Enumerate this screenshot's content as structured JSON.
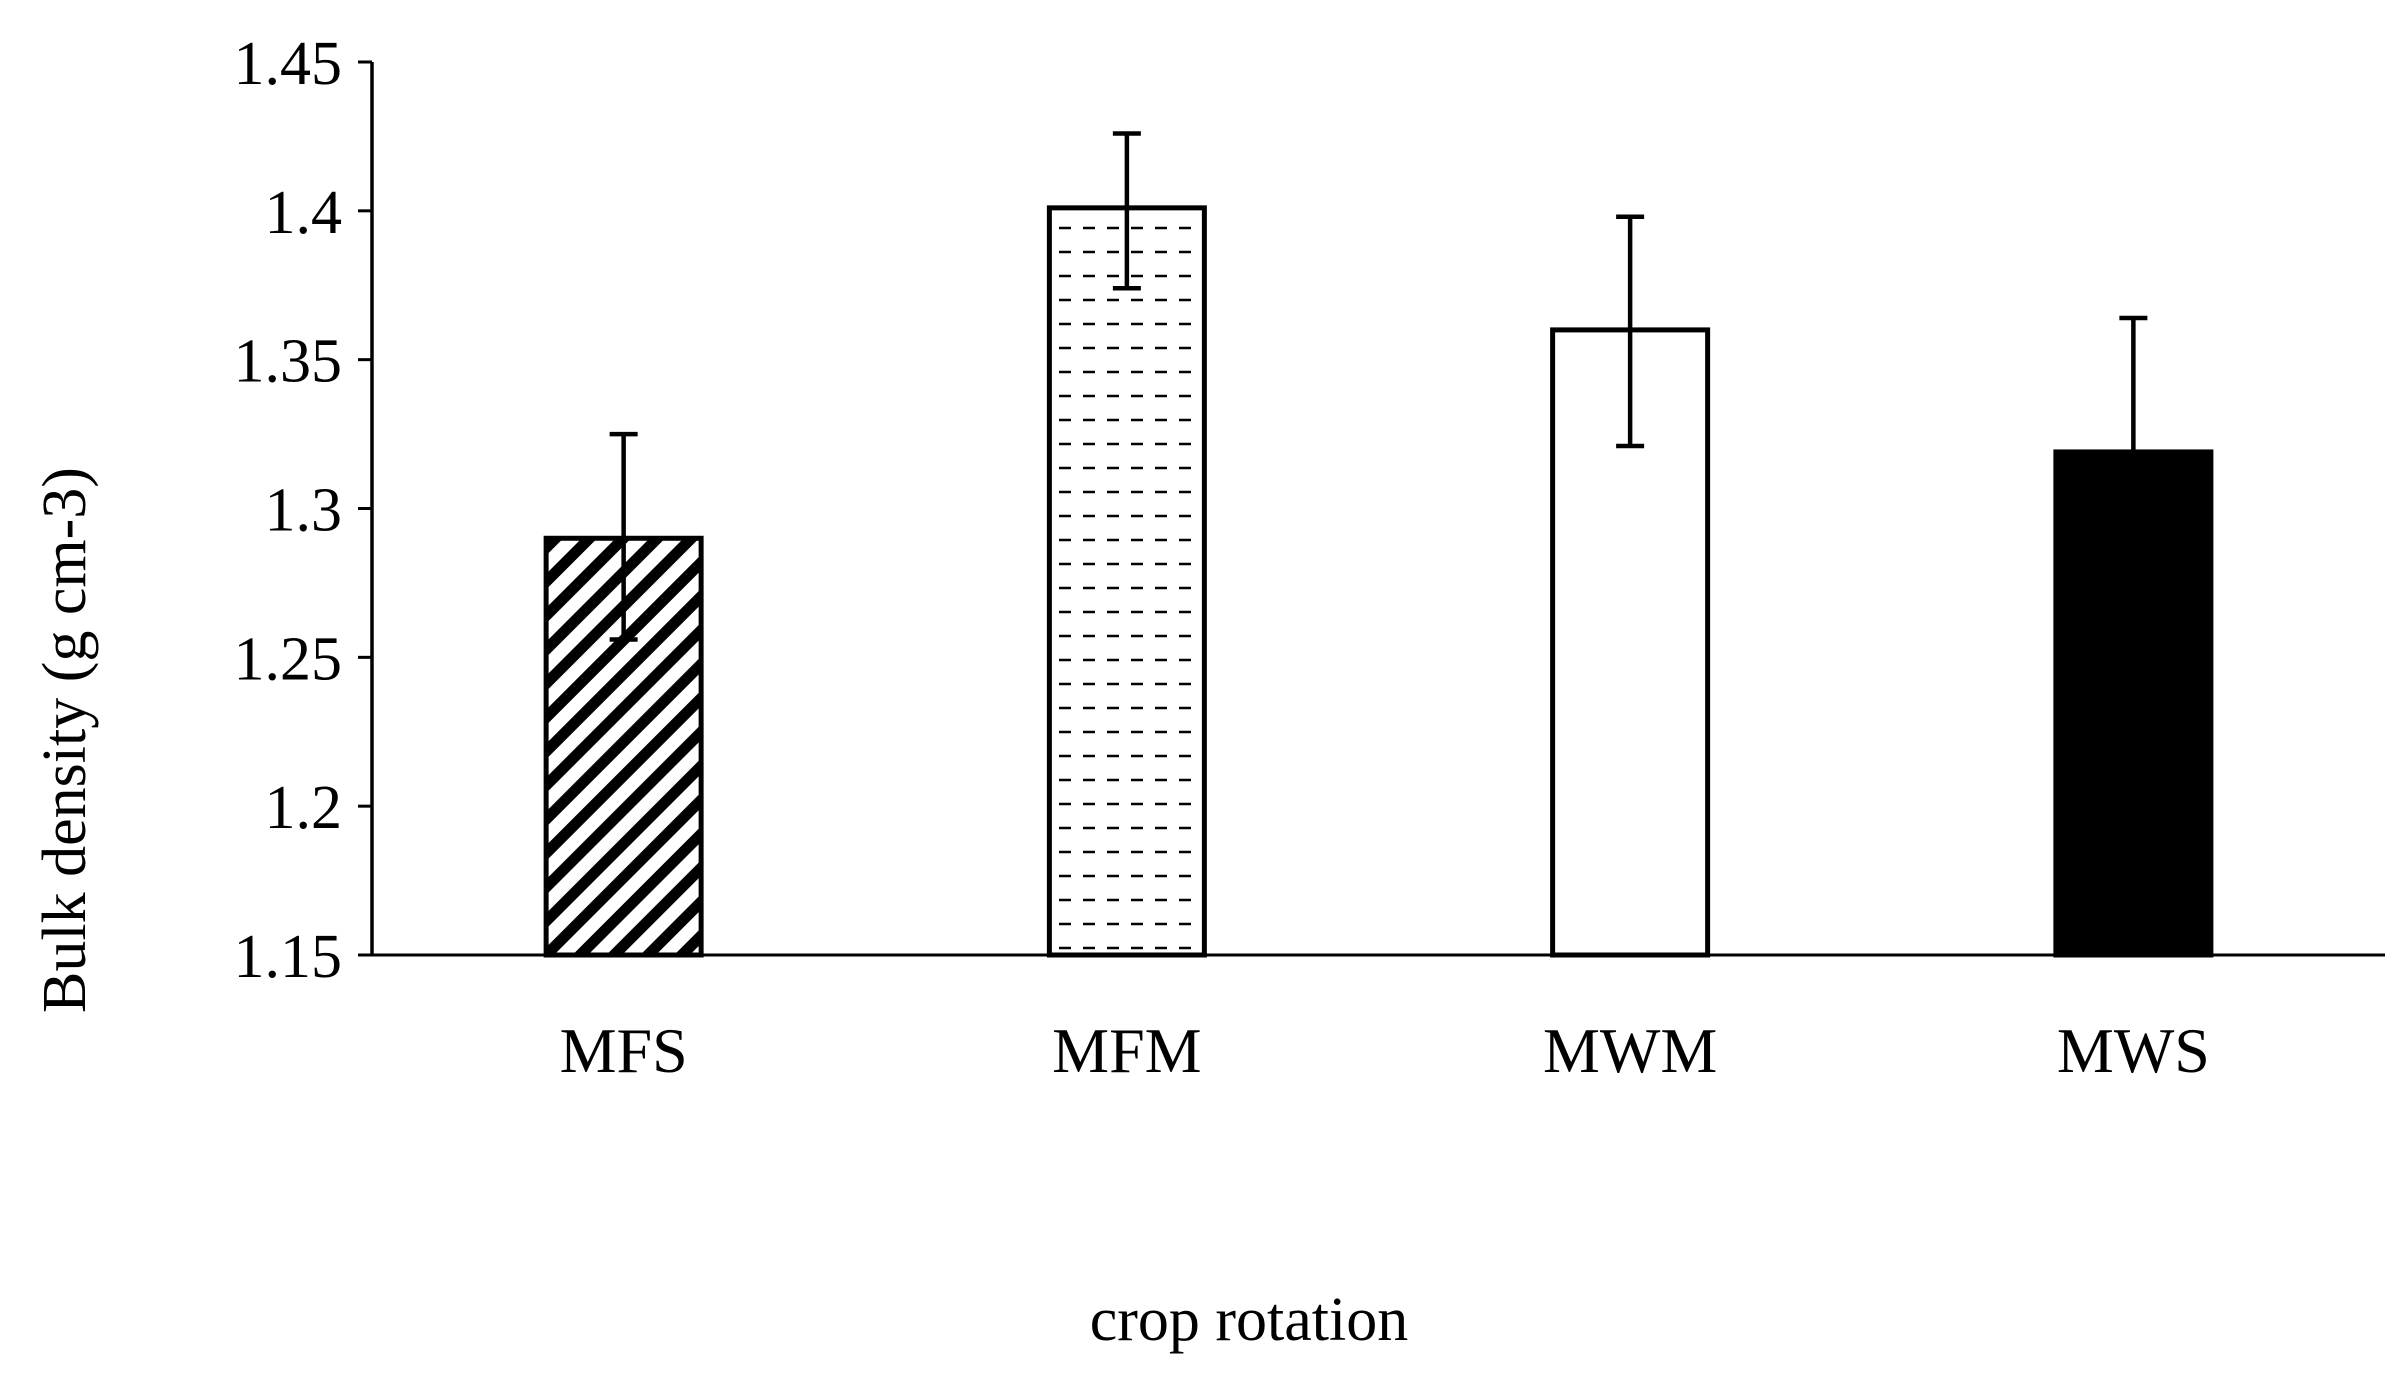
{
  "chart_data": {
    "type": "bar",
    "title": "",
    "xlabel": "crop rotation",
    "ylabel": "Bulk density (g cm-3)",
    "ylim": [
      1.15,
      1.45
    ],
    "yticks": [
      1.15,
      1.2,
      1.25,
      1.3,
      1.35,
      1.4,
      1.45
    ],
    "ytick_labels": [
      "1.15",
      "1.2",
      "1.25",
      "1.3",
      "1.35",
      "1.4",
      "1.45"
    ],
    "grid": false,
    "legend": "none",
    "categories": [
      "MFS",
      "MFM",
      "MWM",
      "MWS"
    ],
    "values": [
      1.29,
      1.401,
      1.36,
      1.319
    ],
    "error_upper": [
      1.325,
      1.426,
      1.398,
      1.364
    ],
    "error_lower": [
      1.256,
      1.374,
      1.321,
      1.319
    ],
    "fills": [
      "diagonal-hatch",
      "dashed-horizontal",
      "white",
      "black"
    ],
    "colors": {
      "ink": "#000000",
      "background": "#ffffff"
    }
  }
}
